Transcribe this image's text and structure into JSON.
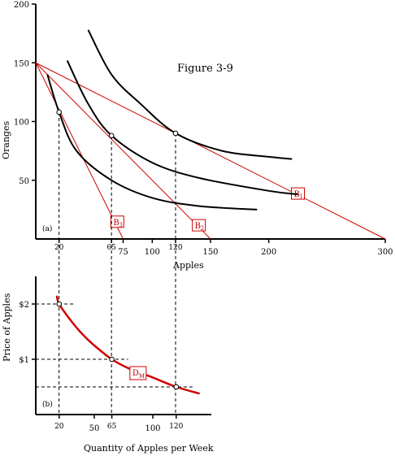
{
  "chart_data": [
    {
      "type": "line",
      "panel_label": "(a)",
      "title": "Figure 3-9",
      "xlabel": "Apples",
      "ylabel": "Oranges",
      "xlim": [
        0,
        300
      ],
      "ylim": [
        0,
        200
      ],
      "y_ticks": [
        "50",
        "100",
        "150",
        "200"
      ],
      "x_ticks": [
        {
          "v": 20,
          "label": "20"
        },
        {
          "v": 65,
          "label": "65"
        },
        {
          "v": 75,
          "label": "75"
        },
        {
          "v": 100,
          "label": "100"
        },
        {
          "v": 120,
          "label": "120"
        },
        {
          "v": 150,
          "label": "150"
        },
        {
          "v": 200,
          "label": "200"
        },
        {
          "v": 300,
          "label": "300"
        }
      ],
      "budget_lines": [
        {
          "name": "B1",
          "base": "B",
          "sub": "1",
          "from": [
            0,
            150
          ],
          "to": [
            300,
            0
          ],
          "label_at": [
            225,
            38
          ]
        },
        {
          "name": "B2",
          "base": "B",
          "sub": "2",
          "from": [
            0,
            150
          ],
          "to": [
            150,
            0
          ],
          "label_at": [
            140,
            11
          ]
        },
        {
          "name": "B3",
          "base": "B",
          "sub": "3",
          "from": [
            0,
            150
          ],
          "to": [
            75,
            0
          ],
          "label_at": [
            70,
            14
          ]
        }
      ],
      "indifference_curves": [
        {
          "points": [
            [
              10,
              140
            ],
            [
              20,
              108
            ],
            [
              35,
              75
            ],
            [
              65,
              50
            ],
            [
              100,
              35
            ],
            [
              140,
              28
            ],
            [
              190,
              25
            ]
          ]
        },
        {
          "points": [
            [
              27,
              152
            ],
            [
              45,
              115
            ],
            [
              65,
              88
            ],
            [
              100,
              65
            ],
            [
              140,
              52
            ],
            [
              200,
              41
            ],
            [
              225,
              38
            ]
          ]
        },
        {
          "points": [
            [
              45,
              178
            ],
            [
              65,
              140
            ],
            [
              90,
              115
            ],
            [
              120,
              90
            ],
            [
              160,
              75
            ],
            [
              200,
              70
            ],
            [
              220,
              68
            ]
          ]
        }
      ],
      "tangency_points": [
        {
          "x": 20,
          "y": 108
        },
        {
          "x": 65,
          "y": 88
        },
        {
          "x": 120,
          "y": 90
        }
      ]
    },
    {
      "type": "line",
      "panel_label": "(b)",
      "xlabel": "Quantity of Apples per Week",
      "ylabel": "Price of Apples",
      "xlim": [
        0,
        150
      ],
      "ylim": [
        0,
        2.5
      ],
      "y_ticks": [
        {
          "v": 1,
          "label": "$1"
        },
        {
          "v": 2,
          "label": "$2"
        }
      ],
      "x_ticks": [
        {
          "v": 20,
          "label": "20"
        },
        {
          "v": 50,
          "label": "50"
        },
        {
          "v": 65,
          "label": "65"
        },
        {
          "v": 100,
          "label": "100"
        },
        {
          "v": 120,
          "label": "120"
        }
      ],
      "demand_label": {
        "base": "D",
        "sub": "M"
      },
      "demand_curve": [
        [
          18,
          2.15
        ],
        [
          20,
          2.0
        ],
        [
          30,
          1.7
        ],
        [
          40,
          1.45
        ],
        [
          50,
          1.25
        ],
        [
          65,
          1.0
        ],
        [
          80,
          0.83
        ],
        [
          100,
          0.67
        ],
        [
          120,
          0.5
        ],
        [
          140,
          0.38
        ]
      ],
      "points": [
        {
          "x": 20,
          "y": 2.0
        },
        {
          "x": 65,
          "y": 1.0
        },
        {
          "x": 120,
          "y": 0.5
        }
      ]
    }
  ]
}
